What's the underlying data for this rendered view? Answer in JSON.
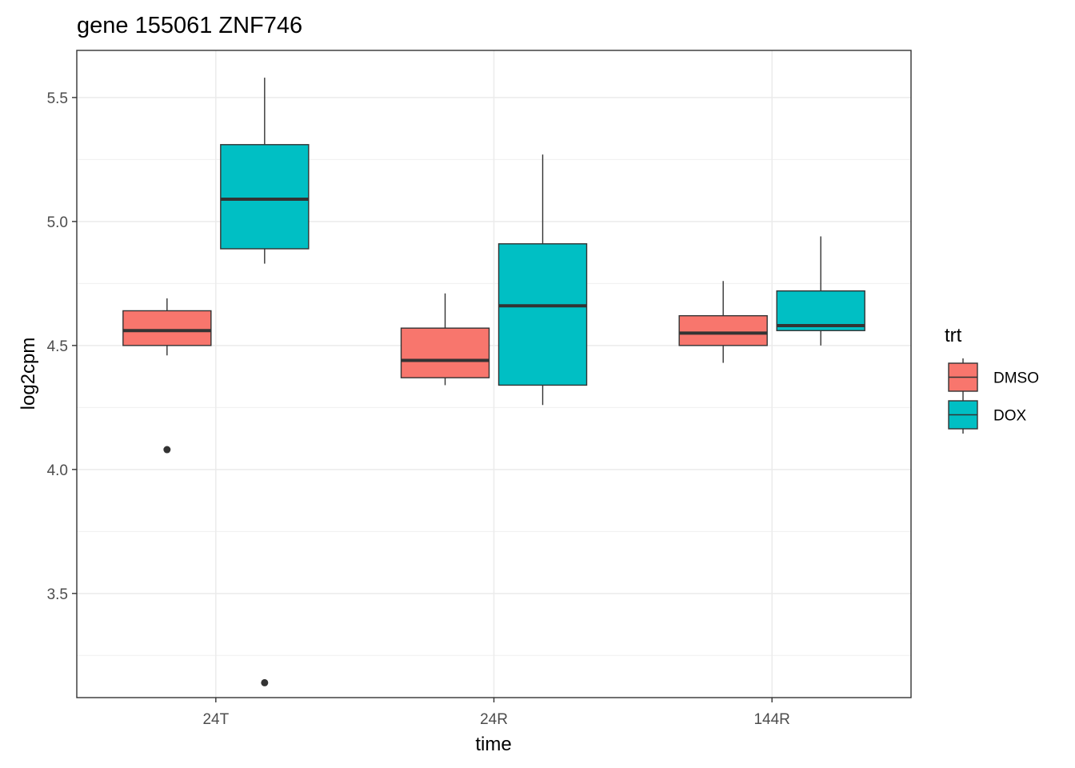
{
  "chart_data": {
    "type": "box",
    "title": "gene 155061 ZNF746",
    "xlabel": "time",
    "ylabel": "log2cpm",
    "categories": [
      "24T",
      "24R",
      "144R"
    ],
    "ylim": [
      3.08,
      5.69
    ],
    "yticks": [
      3.5,
      4.0,
      4.5,
      5.0,
      5.5
    ],
    "ytick_labels": [
      "3.5",
      "4.0",
      "4.5",
      "5.0",
      "5.5"
    ],
    "grid": true,
    "legend": {
      "title": "trt",
      "position": "right",
      "entries": [
        "DMSO",
        "DOX"
      ]
    },
    "series": [
      {
        "name": "DMSO",
        "color": "#F8766D",
        "boxes": [
          {
            "category": "24T",
            "lower_whisker": 4.46,
            "q1": 4.5,
            "median": 4.56,
            "q3": 4.64,
            "upper_whisker": 4.69,
            "outliers": [
              4.08
            ]
          },
          {
            "category": "24R",
            "lower_whisker": 4.34,
            "q1": 4.37,
            "median": 4.44,
            "q3": 4.57,
            "upper_whisker": 4.71,
            "outliers": []
          },
          {
            "category": "144R",
            "lower_whisker": 4.43,
            "q1": 4.5,
            "median": 4.55,
            "q3": 4.62,
            "upper_whisker": 4.76,
            "outliers": []
          }
        ]
      },
      {
        "name": "DOX",
        "color": "#00BFC4",
        "boxes": [
          {
            "category": "24T",
            "lower_whisker": 4.83,
            "q1": 4.89,
            "median": 5.09,
            "q3": 5.31,
            "upper_whisker": 5.58,
            "outliers": [
              3.14
            ]
          },
          {
            "category": "24R",
            "lower_whisker": 4.26,
            "q1": 4.34,
            "median": 4.66,
            "q3": 4.91,
            "upper_whisker": 5.27,
            "outliers": []
          },
          {
            "category": "144R",
            "lower_whisker": 4.5,
            "q1": 4.56,
            "median": 4.58,
            "q3": 4.72,
            "upper_whisker": 4.94,
            "outliers": []
          }
        ]
      }
    ]
  }
}
